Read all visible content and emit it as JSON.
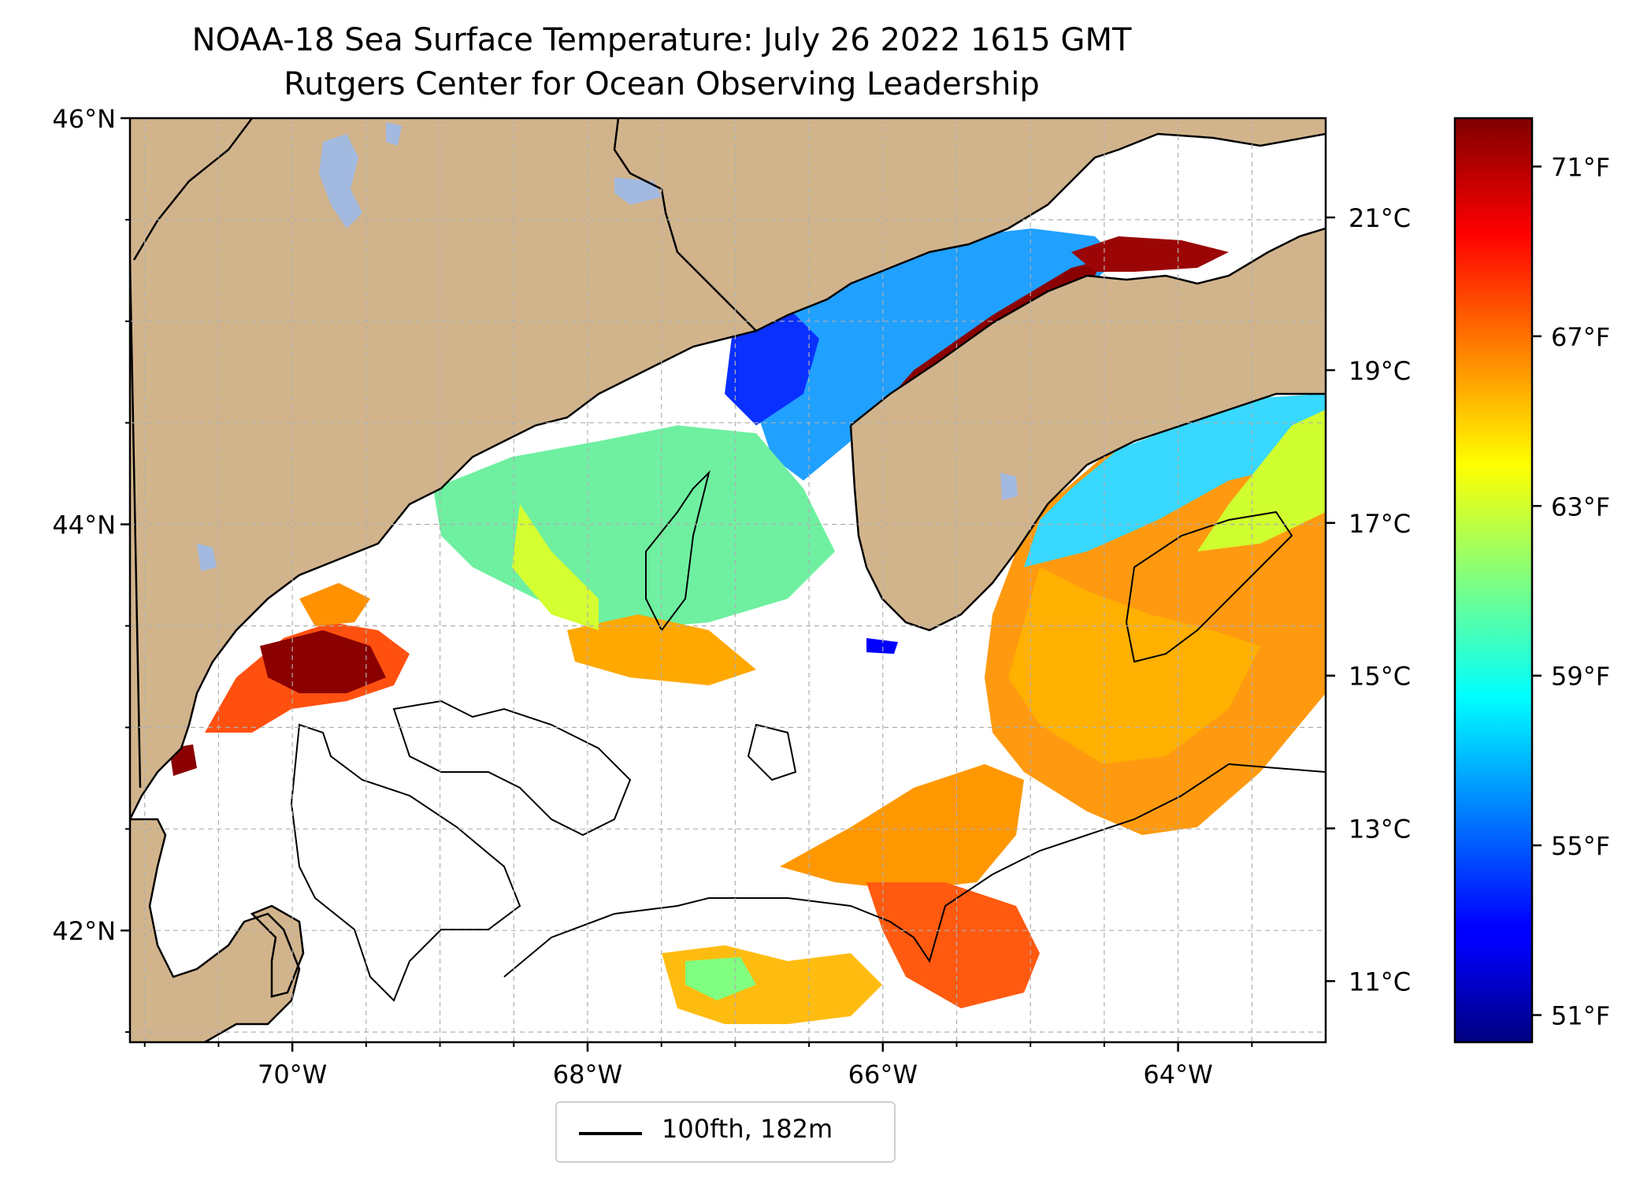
{
  "title": "NOAA-18 Sea Surface Temperature: July 26 2022 1615 GMT",
  "subtitle": "Rutgers Center for Ocean Observing Leadership",
  "map": {
    "lat_range": [
      41.45,
      46.0
    ],
    "lon_range": [
      -71.1,
      -63.0
    ],
    "lat_ticks": [
      {
        "value": 46,
        "label": "46°N"
      },
      {
        "value": 44,
        "label": "44°N"
      },
      {
        "value": 42,
        "label": "42°N"
      }
    ],
    "lon_ticks": [
      {
        "value": -70,
        "label": "70°W"
      },
      {
        "value": -68,
        "label": "68°W"
      },
      {
        "value": -66,
        "label": "66°W"
      },
      {
        "value": -64,
        "label": "64°W"
      }
    ],
    "grid": true,
    "colors": {
      "land": "#d2b48c",
      "lake": "#a2b9e0",
      "coast": "#000000",
      "grid": "#b0b0b0"
    }
  },
  "legend": {
    "placement": "bottom-center-below",
    "entries": [
      {
        "label": "100fth, 182m",
        "color": "#000000"
      }
    ]
  },
  "colorbar": {
    "colormap": "jet",
    "range_c": [
      10.2,
      22.3
    ],
    "celsius_ticks": [
      {
        "value": 21,
        "label": "21°C"
      },
      {
        "value": 19,
        "label": "19°C"
      },
      {
        "value": 17,
        "label": "17°C"
      },
      {
        "value": 15,
        "label": "15°C"
      },
      {
        "value": 13,
        "label": "13°C"
      },
      {
        "value": 11,
        "label": "11°C"
      }
    ],
    "fahrenheit_ticks": [
      {
        "value": 71,
        "label": "71°F"
      },
      {
        "value": 67,
        "label": "67°F"
      },
      {
        "value": 63,
        "label": "63°F"
      },
      {
        "value": 59,
        "label": "59°F"
      },
      {
        "value": 55,
        "label": "55°F"
      },
      {
        "value": 51,
        "label": "51°F"
      }
    ]
  }
}
